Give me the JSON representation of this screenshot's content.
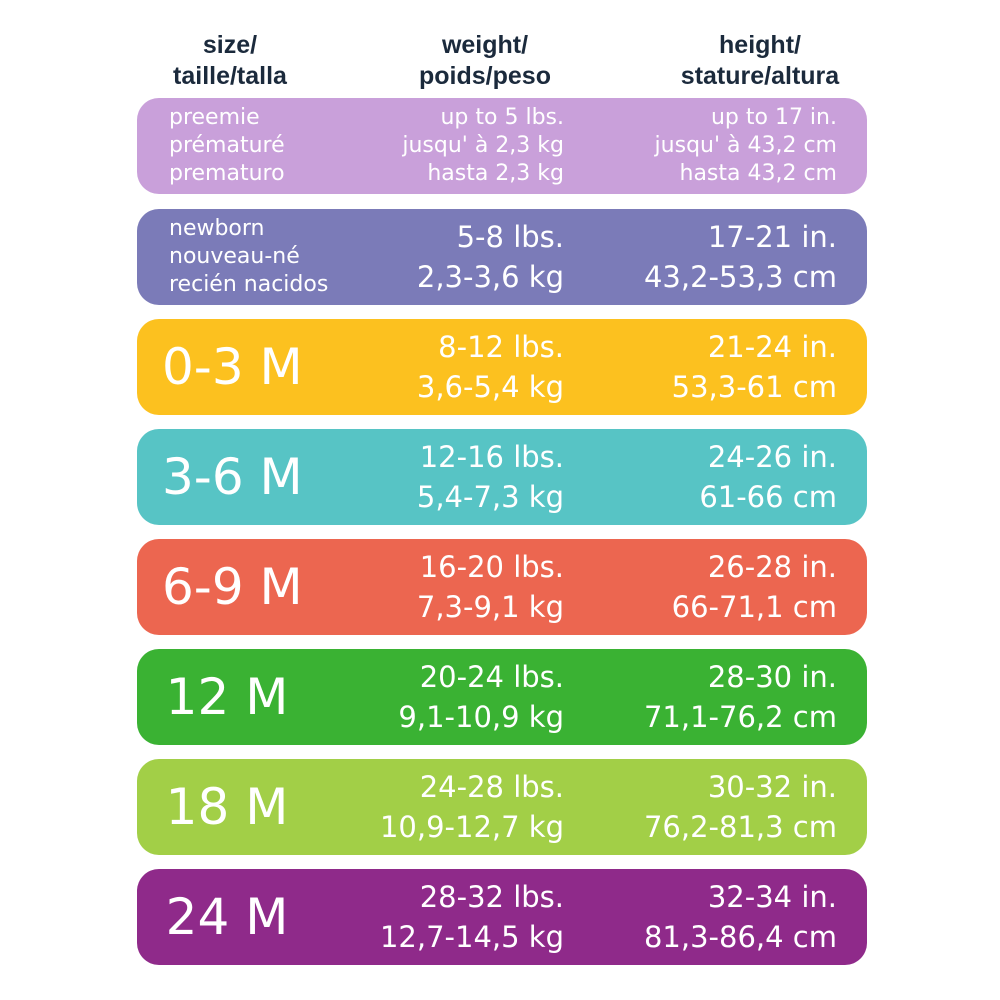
{
  "headers": {
    "size": [
      "size/",
      "taille/talla"
    ],
    "weight": [
      "weight/",
      "poids/peso"
    ],
    "height": [
      "height/",
      "stature/altura"
    ]
  },
  "rows": [
    {
      "color": "#c9a0da",
      "size": [
        "preemie",
        "prématuré",
        "prematuro"
      ],
      "weight": [
        "up to 5 lbs.",
        "jusqu' à 2,3 kg",
        "hasta 2,3 kg"
      ],
      "height": [
        "up to 17 in.",
        "jusqu' à 43,2 cm",
        "hasta 43,2 cm"
      ]
    },
    {
      "color": "#7b7bb8",
      "size": [
        "newborn",
        "nouveau-né",
        "recién nacidos"
      ],
      "weight": [
        "5-8 lbs.",
        "2,3-3,6 kg"
      ],
      "height": [
        "17-21 in.",
        "43,2-53,3 cm"
      ]
    },
    {
      "color": "#fcc11f",
      "size": [
        "0-3 M"
      ],
      "weight": [
        "8-12 lbs.",
        "3,6-5,4 kg"
      ],
      "height": [
        "21-24 in.",
        "53,3-61 cm"
      ]
    },
    {
      "color": "#57c4c5",
      "size": [
        "3-6 M"
      ],
      "weight": [
        "12-16 lbs.",
        "5,4-7,3 kg"
      ],
      "height": [
        "24-26 in.",
        "61-66 cm"
      ]
    },
    {
      "color": "#ec6650",
      "size": [
        "6-9 M"
      ],
      "weight": [
        "16-20 lbs.",
        "7,3-9,1 kg"
      ],
      "height": [
        "26-28 in.",
        "66-71,1 cm"
      ]
    },
    {
      "color": "#3ab233",
      "size": [
        "12 M"
      ],
      "weight": [
        "20-24 lbs.",
        "9,1-10,9 kg"
      ],
      "height": [
        "28-30 in.",
        "71,1-76,2 cm"
      ]
    },
    {
      "color": "#a2cf47",
      "size": [
        "18 M"
      ],
      "weight": [
        "24-28 lbs.",
        "10,9-12,7 kg"
      ],
      "height": [
        "30-32 in.",
        "76,2-81,3 cm"
      ]
    },
    {
      "color": "#8f2a8a",
      "size": [
        "24 M"
      ],
      "weight": [
        "28-32 lbs.",
        "12,7-14,5 kg"
      ],
      "height": [
        "32-34 in.",
        "81,3-86,4 cm"
      ]
    }
  ]
}
